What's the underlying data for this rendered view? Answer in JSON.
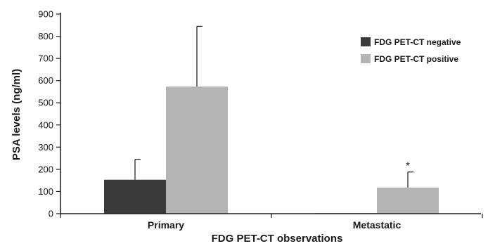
{
  "chart_data": {
    "type": "bar",
    "title": "",
    "xlabel": "FDG PET-CT observations",
    "ylabel": "PSA levels (ng/ml)",
    "ylim": [
      0,
      900
    ],
    "yticks": [
      "0",
      "100",
      "200",
      "300",
      "400",
      "500",
      "600",
      "700",
      "800",
      "900"
    ],
    "categories": [
      "Primary",
      "Metastatic"
    ],
    "series": [
      {
        "name": "FDG PET-CT negative",
        "color": "#3a3a3a",
        "values": [
          153,
          2
        ],
        "errors": [
          92,
          0
        ]
      },
      {
        "name": "FDG PET-CT positive",
        "color": "#b5b5b8",
        "values": [
          573,
          118
        ],
        "errors": [
          272,
          70
        ]
      }
    ],
    "annotations": [
      {
        "text": "*",
        "category": "Metastatic",
        "series": "FDG PET-CT positive"
      }
    ],
    "legend": "top-right",
    "grid": false
  }
}
